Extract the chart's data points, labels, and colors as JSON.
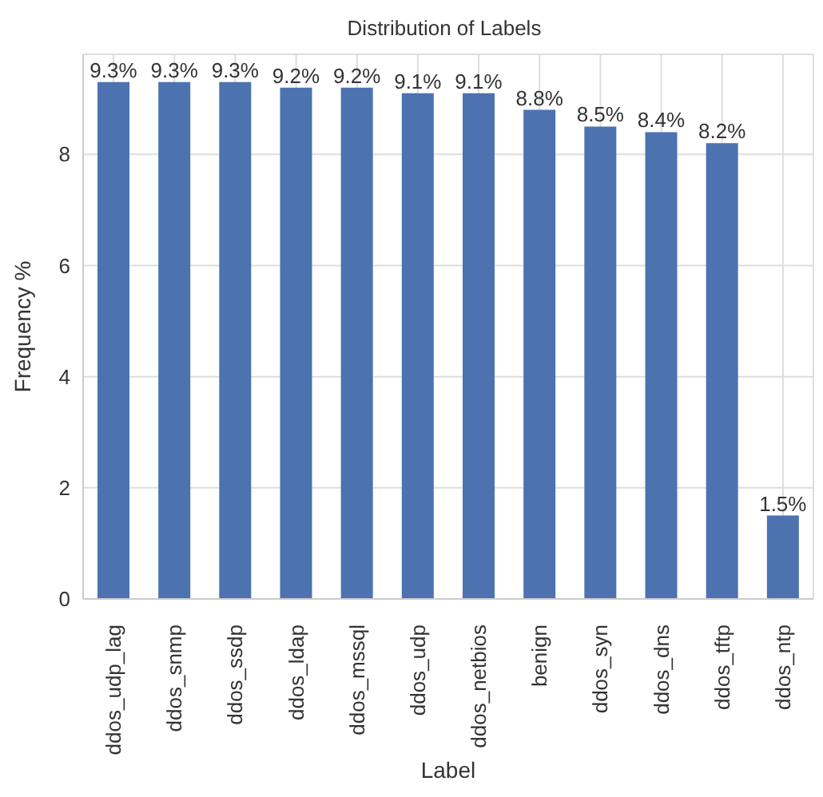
{
  "chart_data": {
    "type": "bar",
    "title": "Distribution of Labels",
    "xlabel": "Label",
    "ylabel": "Frequency %",
    "categories": [
      "ddos_udp_lag",
      "ddos_snmp",
      "ddos_ssdp",
      "ddos_ldap",
      "ddos_mssql",
      "ddos_udp",
      "ddos_netbios",
      "benign",
      "ddos_syn",
      "ddos_dns",
      "ddos_tftp",
      "ddos_ntp"
    ],
    "values": [
      9.3,
      9.3,
      9.3,
      9.2,
      9.2,
      9.1,
      9.1,
      8.8,
      8.5,
      8.4,
      8.2,
      1.5
    ],
    "value_labels": [
      "9.3%",
      "9.3%",
      "9.3%",
      "9.2%",
      "9.2%",
      "9.1%",
      "9.1%",
      "8.8%",
      "8.5%",
      "8.4%",
      "8.2%",
      "1.5%"
    ],
    "color": "#4c72b0",
    "ylim": [
      0,
      9.8
    ],
    "yticks": [
      0,
      2,
      4,
      6,
      8
    ],
    "grid": true
  }
}
